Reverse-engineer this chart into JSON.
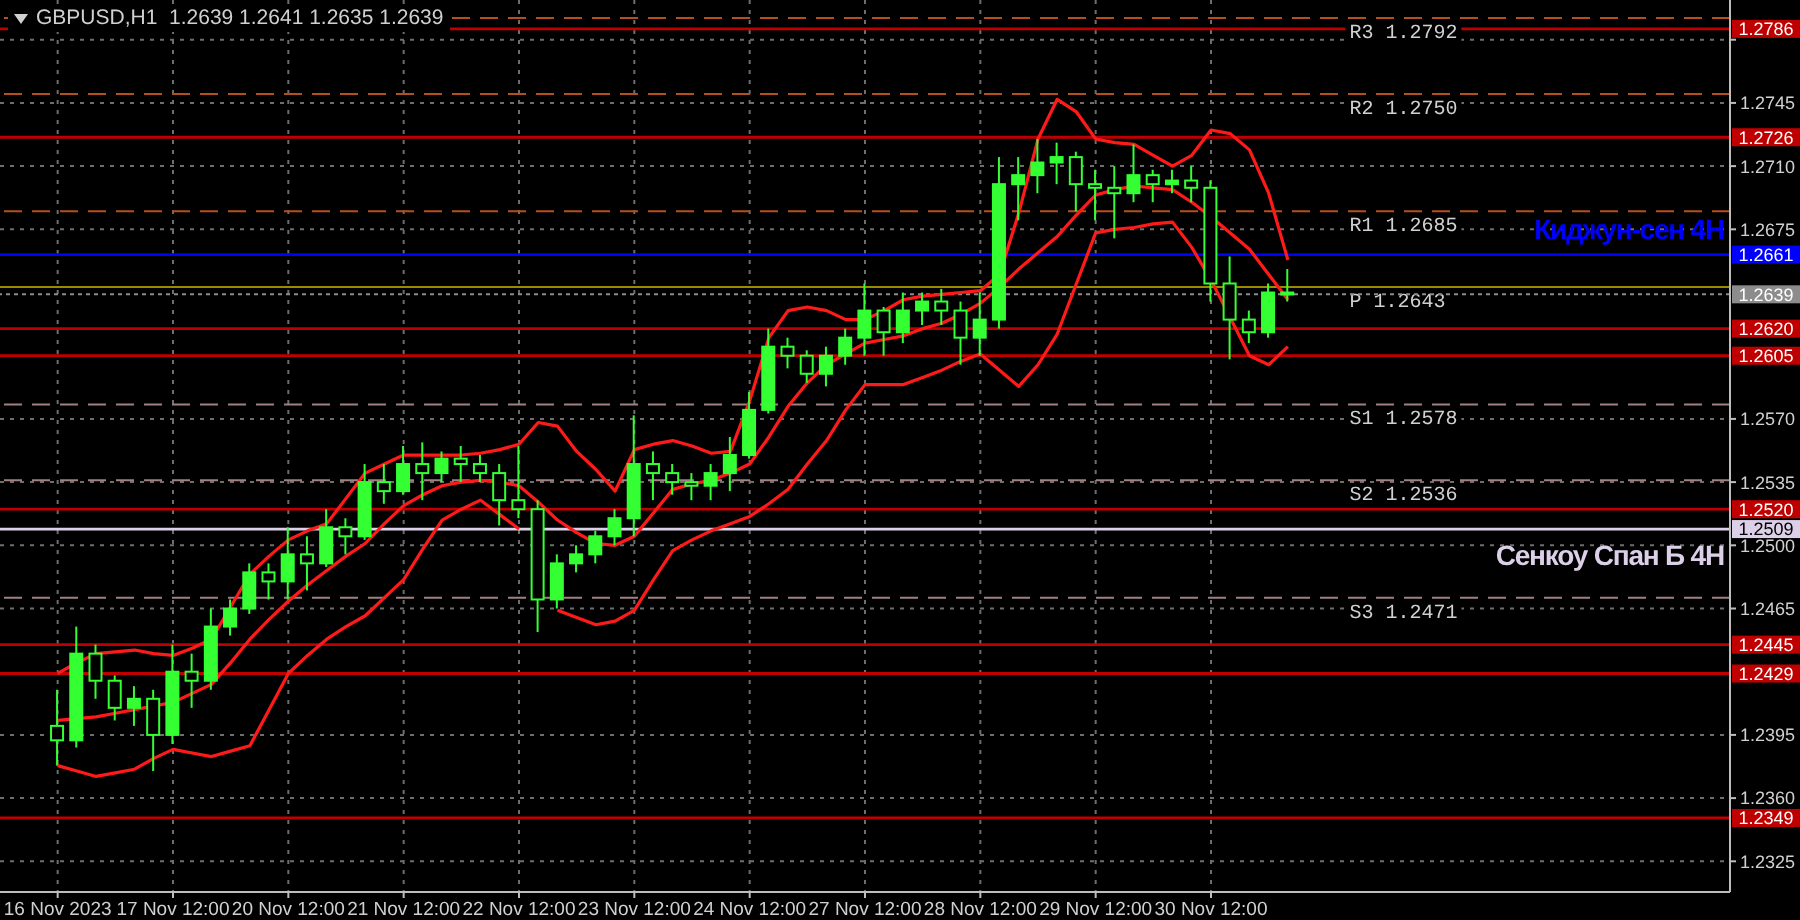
{
  "chart_data": {
    "type": "candlestick",
    "title": "GBPUSD,H1  1.2639 1.2641 1.2635 1.2639",
    "color": "#33ff33",
    "categories": [
      "16 Nov 2023",
      null,
      null,
      null,
      null,
      null,
      "17 Nov 12:00",
      null,
      null,
      null,
      null,
      null,
      "20 Nov 12:00",
      null,
      null,
      null,
      null,
      null,
      "21 Nov 12:00",
      null,
      null,
      null,
      null,
      null,
      "22 Nov 12:00",
      null,
      null,
      null,
      null,
      null,
      "23 Nov 12:00",
      null,
      null,
      null,
      null,
      null,
      "24 Nov 12:00",
      null,
      null,
      null,
      null,
      null,
      "27 Nov 12:00",
      null,
      null,
      null,
      null,
      null,
      "28 Nov 12:00",
      null,
      null,
      null,
      null,
      null,
      "29 Nov 12:00",
      null,
      null,
      null,
      null,
      null,
      "30 Nov 12:00",
      null,
      null,
      null,
      null
    ],
    "ohlc": [
      [
        1.24,
        1.242,
        1.2378,
        1.2392
      ],
      [
        1.2392,
        1.2455,
        1.2388,
        1.244
      ],
      [
        1.244,
        1.2445,
        1.2415,
        1.2425
      ],
      [
        1.2425,
        1.2428,
        1.2403,
        1.241
      ],
      [
        1.241,
        1.2422,
        1.24,
        1.2415
      ],
      [
        1.2415,
        1.242,
        1.2375,
        1.2395
      ],
      [
        1.2395,
        1.2445,
        1.239,
        1.243
      ],
      [
        1.243,
        1.244,
        1.241,
        1.2425
      ],
      [
        1.2425,
        1.2465,
        1.242,
        1.2455
      ],
      [
        1.2455,
        1.247,
        1.245,
        1.2465
      ],
      [
        1.2465,
        1.249,
        1.2462,
        1.2485
      ],
      [
        1.2485,
        1.249,
        1.247,
        1.248
      ],
      [
        1.248,
        1.251,
        1.247,
        1.2495
      ],
      [
        1.2495,
        1.2505,
        1.2475,
        1.249
      ],
      [
        1.249,
        1.252,
        1.2488,
        1.251
      ],
      [
        1.251,
        1.2515,
        1.2495,
        1.2505
      ],
      [
        1.2505,
        1.2545,
        1.2503,
        1.2535
      ],
      [
        1.2535,
        1.2545,
        1.2523,
        1.253
      ],
      [
        1.253,
        1.2555,
        1.2528,
        1.2545
      ],
      [
        1.2545,
        1.2557,
        1.2525,
        1.254
      ],
      [
        1.254,
        1.2552,
        1.2535,
        1.2548
      ],
      [
        1.2548,
        1.2555,
        1.2535,
        1.2545
      ],
      [
        1.2545,
        1.255,
        1.2535,
        1.254
      ],
      [
        1.254,
        1.2545,
        1.2511,
        1.2525
      ],
      [
        1.2525,
        1.2555,
        1.2515,
        1.252
      ],
      [
        1.252,
        1.2525,
        1.2452,
        1.247
      ],
      [
        1.247,
        1.2495,
        1.2465,
        1.249
      ],
      [
        1.249,
        1.25,
        1.2485,
        1.2495
      ],
      [
        1.2495,
        1.2508,
        1.249,
        1.2505
      ],
      [
        1.2505,
        1.252,
        1.25,
        1.2515
      ],
      [
        1.2515,
        1.2572,
        1.2505,
        1.2545
      ],
      [
        1.2545,
        1.2552,
        1.2525,
        1.254
      ],
      [
        1.254,
        1.2545,
        1.2528,
        1.2535
      ],
      [
        1.2535,
        1.254,
        1.2525,
        1.2533
      ],
      [
        1.2533,
        1.2545,
        1.2525,
        1.254
      ],
      [
        1.254,
        1.256,
        1.253,
        1.255
      ],
      [
        1.255,
        1.2585,
        1.2548,
        1.2575
      ],
      [
        1.2575,
        1.262,
        1.2573,
        1.261
      ],
      [
        1.261,
        1.2615,
        1.2598,
        1.2605
      ],
      [
        1.2605,
        1.2608,
        1.259,
        1.2595
      ],
      [
        1.2595,
        1.261,
        1.2588,
        1.2605
      ],
      [
        1.2605,
        1.262,
        1.26,
        1.2615
      ],
      [
        1.2615,
        1.2645,
        1.2605,
        1.263
      ],
      [
        1.263,
        1.2632,
        1.2605,
        1.2618
      ],
      [
        1.2618,
        1.264,
        1.2612,
        1.263
      ],
      [
        1.263,
        1.264,
        1.2622,
        1.2635
      ],
      [
        1.2635,
        1.2642,
        1.2622,
        1.263
      ],
      [
        1.263,
        1.2635,
        1.26,
        1.2615
      ],
      [
        1.2615,
        1.264,
        1.2605,
        1.2625
      ],
      [
        1.2625,
        1.2715,
        1.262,
        1.27
      ],
      [
        1.27,
        1.2715,
        1.268,
        1.2705
      ],
      [
        1.2705,
        1.2725,
        1.2695,
        1.2712
      ],
      [
        1.2712,
        1.2723,
        1.27,
        1.2715
      ],
      [
        1.2715,
        1.2718,
        1.2685,
        1.27
      ],
      [
        1.27,
        1.2708,
        1.268,
        1.2698
      ],
      [
        1.2698,
        1.271,
        1.267,
        1.2695
      ],
      [
        1.2695,
        1.2722,
        1.269,
        1.2705
      ],
      [
        1.2705,
        1.2708,
        1.269,
        1.27
      ],
      [
        1.27,
        1.2708,
        1.2695,
        1.2702
      ],
      [
        1.2702,
        1.271,
        1.269,
        1.2698
      ],
      [
        1.2698,
        1.2702,
        1.2635,
        1.2645
      ],
      [
        1.2645,
        1.266,
        1.2603,
        1.2625
      ],
      [
        1.2625,
        1.263,
        1.2612,
        1.2618
      ],
      [
        1.2618,
        1.2645,
        1.2615,
        1.264
      ],
      [
        1.264,
        1.2653,
        1.2635,
        1.2639
      ]
    ],
    "series": [
      {
        "type": "line",
        "color": "#ff1a1a",
        "values": [
          1.2429,
          1.2435,
          1.244,
          1.2441,
          1.2442,
          1.244,
          1.2439,
          1.2443,
          1.2448,
          1.2466,
          1.2484,
          1.2494,
          1.2503,
          1.2508,
          1.2512,
          1.2526,
          1.254,
          1.2545,
          1.255,
          1.255,
          1.255,
          1.255,
          1.2551,
          1.2553,
          1.2556,
          1.2568,
          1.2566,
          1.2552,
          1.2542,
          1.253,
          1.2553,
          1.2556,
          1.2558,
          1.2555,
          1.2551,
          1.2552,
          1.258,
          1.2615,
          1.263,
          1.2632,
          1.263,
          1.2625,
          1.2625,
          1.263,
          1.2636,
          1.2638,
          1.2639,
          1.264,
          1.2641,
          1.265,
          1.2684,
          1.2725,
          1.2747,
          1.274,
          1.2725,
          1.2723,
          1.2722,
          1.2716,
          1.271,
          1.2716,
          1.273,
          1.2728,
          1.2719,
          1.2695,
          1.2658
        ]
      },
      {
        "type": "line",
        "color": "#ff1a1a",
        "values": [
          1.2403,
          1.2404,
          1.2405,
          1.2407,
          1.2409,
          1.2411,
          1.2413,
          1.2418,
          1.2423,
          1.2435,
          1.2448,
          1.2459,
          1.2469,
          1.2478,
          1.2486,
          1.2494,
          1.2501,
          1.2512,
          1.2522,
          1.2528,
          1.2533,
          1.2535,
          1.2536,
          1.2535,
          1.2533,
          1.2524,
          1.2514,
          1.2507,
          1.2501,
          1.25,
          1.2505,
          1.2518,
          1.2531,
          1.2534,
          1.2536,
          1.254,
          1.2545,
          1.256,
          1.2577,
          1.259,
          1.26,
          1.2606,
          1.2612,
          1.2614,
          1.2616,
          1.262,
          1.2623,
          1.2628,
          1.2634,
          1.2643,
          1.2653,
          1.2662,
          1.2671,
          1.2683,
          1.2694,
          1.2697,
          1.2699,
          1.2698,
          1.2697,
          1.269,
          1.2682,
          1.2673,
          1.2664,
          1.265,
          1.2636
        ]
      },
      {
        "type": "line",
        "color": "#ff1a1a",
        "values": [
          1.2378,
          1.2375,
          1.2372,
          1.2374,
          1.2376,
          1.2382,
          1.2387,
          1.2385,
          1.2383,
          1.2386,
          1.2389,
          1.2409,
          1.2429,
          1.2439,
          1.2448,
          1.2455,
          1.2461,
          1.2471,
          1.2481,
          1.2498,
          1.2514,
          1.252,
          1.2525,
          1.2517,
          1.2509,
          null,
          1.2464,
          1.246,
          1.2456,
          1.2458,
          1.2464,
          1.2481,
          1.2497,
          1.2503,
          1.2508,
          1.2512,
          1.2516,
          1.2523,
          1.2531,
          1.2545,
          1.2558,
          1.2575,
          1.2589,
          1.2589,
          1.2589,
          1.2593,
          1.2597,
          1.2602,
          1.2606,
          1.2597,
          1.2588,
          1.26,
          1.2617,
          1.2645,
          1.2673,
          1.2675,
          1.2676,
          1.2678,
          1.2679,
          1.2665,
          1.2647,
          1.2626,
          1.2605,
          1.26,
          1.261
        ]
      }
    ],
    "ref_lines": [
      {
        "axis": "y",
        "value": 1.2786,
        "label": "1.2786",
        "color": "#c00000"
      },
      {
        "axis": "y",
        "value": 1.275,
        "label": "R2 1.2750",
        "color": "#b5501e",
        "line_style": "dashed"
      },
      {
        "axis": "y",
        "value": 1.2726,
        "label": "1.2726",
        "color": "#c00000"
      },
      {
        "axis": "y",
        "value": 1.2685,
        "label": "R1 1.2685",
        "color": "#b5501e",
        "line_style": "dashed"
      },
      {
        "axis": "y",
        "value": 1.2661,
        "label": "1.2661",
        "color": "#0000ff"
      },
      {
        "axis": "y",
        "value": 1.2643,
        "label": "P 1.2643",
        "color": "#9a8a00",
        "line_style": "solid"
      },
      {
        "axis": "y",
        "value": 1.2639,
        "label": "1.2639",
        "color": "#8c8c8c",
        "line_style": "dotted"
      },
      {
        "axis": "y",
        "value": 1.262,
        "label": "1.2620",
        "color": "#c00000"
      },
      {
        "axis": "y",
        "value": 1.2605,
        "label": "1.2605",
        "color": "#c00000"
      },
      {
        "axis": "y",
        "value": 1.2578,
        "label": "S1 1.2578",
        "color": "#a08080",
        "line_style": "dashed"
      },
      {
        "axis": "y",
        "value": 1.2536,
        "label": "S2 1.2536",
        "color": "#a08080",
        "line_style": "dashed"
      },
      {
        "axis": "y",
        "value": 1.252,
        "label": "1.2520",
        "color": "#c00000"
      },
      {
        "axis": "y",
        "value": 1.2509,
        "label": "1.2509",
        "color": "#dcd0e8"
      },
      {
        "axis": "y",
        "value": 1.2471,
        "label": "S3 1.2471",
        "color": "#a08080",
        "line_style": "dashed"
      },
      {
        "axis": "y",
        "value": 1.2445,
        "label": "1.2445",
        "color": "#c00000"
      },
      {
        "axis": "y",
        "value": 1.2429,
        "label": "1.2429",
        "color": "#c00000"
      },
      {
        "axis": "y",
        "value": 1.2349,
        "label": "1.2349",
        "color": "#c00000"
      },
      {
        "axis": "y",
        "value": 1.2792,
        "label": "R3 1.2792",
        "color": "#b5501e",
        "line_style": "dashed"
      }
    ],
    "annotations": [
      {
        "text": "Киджун-сен 4H",
        "y": 1.2661
      },
      {
        "text": "Сенкоу Спан Б 4H",
        "y": 1.2509
      }
    ],
    "ylim": [
      1.2308,
      1.2802
    ],
    "yticks": [
      {
        "value": 1.2325,
        "label": "1.2325"
      },
      {
        "value": 1.236,
        "label": "1.2360"
      },
      {
        "value": 1.2395,
        "label": "1.2395"
      },
      {
        "value": 1.2465,
        "label": "1.2465"
      },
      {
        "value": 1.25,
        "label": "1.2500"
      },
      {
        "value": 1.2535,
        "label": "1.2535"
      },
      {
        "value": 1.257,
        "label": "1.2570"
      },
      {
        "value": 1.2675,
        "label": "1.2675"
      },
      {
        "value": 1.271,
        "label": "1.2710"
      },
      {
        "value": 1.2745,
        "label": "1.2745"
      },
      {
        "value": 1.278,
        "label": null
      }
    ],
    "grid": true
  }
}
